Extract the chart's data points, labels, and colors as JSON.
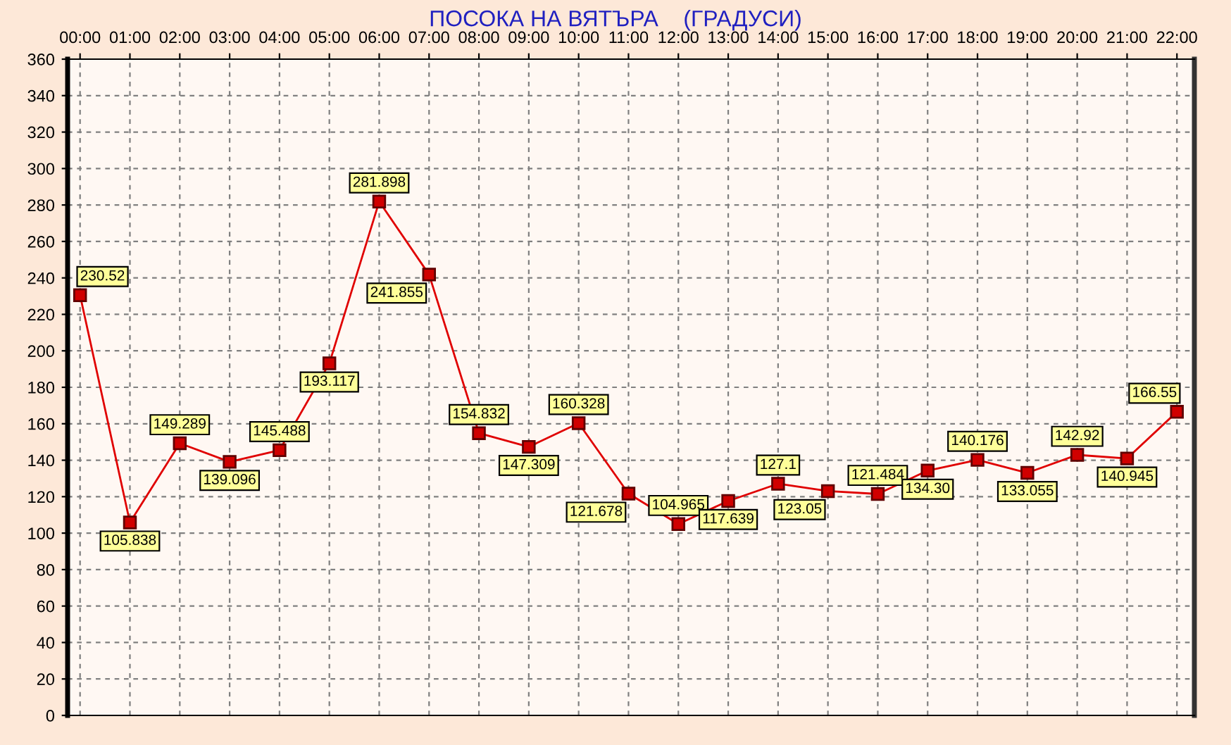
{
  "chart_data": {
    "type": "line",
    "title": "ПОСОКА НА ВЯТЪРА    (ГРАДУСИ)",
    "categories": [
      "00:00",
      "01:00",
      "02:00",
      "03:00",
      "04:00",
      "05:00",
      "06:00",
      "07:00",
      "08:00",
      "09:00",
      "10:00",
      "11:00",
      "12:00",
      "13:00",
      "14:00",
      "15:00",
      "16:00",
      "17:00",
      "18:00",
      "19:00",
      "20:00",
      "21:00",
      "22:00"
    ],
    "values": [
      230.52,
      105.838,
      149.289,
      139.096,
      145.488,
      193.117,
      281.898,
      241.855,
      154.832,
      147.309,
      160.328,
      121.678,
      104.965,
      117.639,
      127.1,
      123.05,
      121.484,
      134.3,
      140.176,
      133.055,
      142.92,
      140.945,
      166.55
    ],
    "value_labels": [
      "230.52",
      "105.838",
      "149.289",
      "139.096",
      "145.488",
      "193.117",
      "281.898",
      "241.855",
      "154.832",
      "147.309",
      "160.328",
      "121.678",
      "104.965",
      "117.639",
      "127.1",
      "123.05",
      "121.484",
      "134.30",
      "140.176",
      "133.055",
      "142.92",
      "140.945",
      "166.55"
    ],
    "color": "#e00000",
    "ylim": [
      0,
      360
    ],
    "yticks": [
      0,
      20,
      40,
      60,
      80,
      100,
      120,
      140,
      160,
      180,
      200,
      220,
      240,
      260,
      280,
      300,
      320,
      340,
      360
    ],
    "grid": true,
    "marker": "square",
    "line_style": "solid"
  }
}
